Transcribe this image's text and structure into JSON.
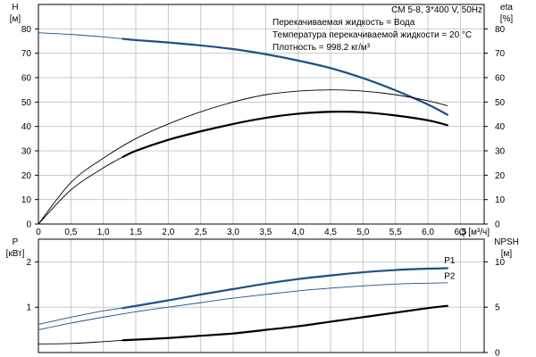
{
  "chart_data": [
    {
      "type": "line",
      "panel": "head-efficiency",
      "title": "CM 5-8, 3*400 V, 50Hz",
      "info": [
        "Перекачиваемая жидкость = Вода",
        "Температура перекачиваемой жидкости = 20 °C",
        "Плотность = 998.2 кг/м³"
      ],
      "xlabel": "Q [м³/ч]",
      "xlim": [
        0,
        7.0
      ],
      "xticks": [
        0,
        0.5,
        1.0,
        1.5,
        2.0,
        2.5,
        3.0,
        3.5,
        4.0,
        4.5,
        5.0,
        5.5,
        6.0,
        6.5
      ],
      "xtick_labels": [
        "0",
        "0,5",
        "1,0",
        "1,5",
        "2,0",
        "2,5",
        "3,0",
        "3,5",
        "4,0",
        "4,5",
        "5,0",
        "5,5",
        "6,0",
        "6,5"
      ],
      "y_left": {
        "label_lines": [
          "H",
          "[м]"
        ],
        "lim": [
          0,
          90
        ],
        "ticks": [
          0,
          10,
          20,
          30,
          40,
          50,
          60,
          70,
          80
        ]
      },
      "y_right": {
        "label_lines": [
          "eta",
          "[%]"
        ],
        "lim": [
          0,
          90
        ],
        "ticks": [
          0,
          10,
          20,
          30,
          40,
          50,
          60,
          70,
          80
        ]
      },
      "grid": true,
      "series": [
        {
          "axis": "left",
          "color": "#1c4f8a",
          "width": 0.9,
          "x": [
            0,
            0.5,
            1.0,
            1.3
          ],
          "y": [
            78.4,
            77.7,
            76.7,
            75.9
          ]
        },
        {
          "axis": "left",
          "color": "#1c4f8a",
          "width": 2.2,
          "x": [
            1.3,
            1.5,
            2.0,
            2.5,
            3.0,
            3.5,
            4.0,
            4.5,
            5.0,
            5.5,
            6.0,
            6.3
          ],
          "y": [
            75.9,
            75.4,
            74.4,
            73.2,
            71.7,
            69.6,
            67.0,
            63.9,
            59.8,
            54.8,
            49.0,
            44.8
          ]
        },
        {
          "axis": "right",
          "color": "#000000",
          "width": 0.9,
          "x": [
            0,
            0.5,
            1.0,
            1.5,
            2.0,
            2.5,
            3.0,
            3.5,
            4.0,
            4.5,
            5.0,
            5.5,
            6.0,
            6.3
          ],
          "y": [
            0,
            17,
            27,
            35,
            41,
            46,
            50,
            53,
            54.5,
            55,
            54.5,
            53,
            50.5,
            48.5
          ]
        },
        {
          "axis": "right",
          "color": "#000000",
          "width": 0.9,
          "x": [
            0,
            0.5,
            1.0,
            1.3
          ],
          "y": [
            0,
            14,
            23,
            27.5
          ]
        },
        {
          "axis": "right",
          "color": "#000000",
          "width": 2.2,
          "x": [
            1.3,
            1.5,
            2.0,
            2.5,
            3.0,
            3.5,
            4.0,
            4.5,
            5.0,
            5.5,
            6.0,
            6.3
          ],
          "y": [
            27.5,
            30,
            34.5,
            38,
            41,
            43.5,
            45.2,
            46,
            45.8,
            44.5,
            42.5,
            40.5
          ]
        }
      ]
    },
    {
      "type": "line",
      "panel": "power-npsh",
      "xlim": [
        0,
        7.0
      ],
      "y_left": {
        "label_lines": [
          "P",
          "[кВт]"
        ],
        "lim": [
          0,
          2.5
        ],
        "ticks": [
          1,
          2
        ]
      },
      "y_right": {
        "label_lines": [
          "NPSH",
          "[м]"
        ],
        "lim": [
          0,
          12.5
        ],
        "ticks": [
          0,
          5,
          10
        ]
      },
      "grid": true,
      "series": [
        {
          "name": "P1",
          "axis": "left",
          "color": "#1c4f8a",
          "width": 0.9,
          "x": [
            0,
            0.5,
            1.0,
            1.3
          ],
          "y": [
            0.62,
            0.78,
            0.92,
            0.98
          ]
        },
        {
          "name": "P1",
          "axis": "left",
          "color": "#1c4f8a",
          "width": 2.2,
          "x": [
            1.3,
            2.0,
            2.5,
            3.0,
            3.5,
            4.0,
            4.5,
            5.0,
            5.5,
            6.0,
            6.3
          ],
          "y": [
            0.98,
            1.15,
            1.28,
            1.4,
            1.52,
            1.62,
            1.7,
            1.77,
            1.82,
            1.85,
            1.86
          ]
        },
        {
          "name": "P2",
          "axis": "left",
          "color": "#1c4f8a",
          "width": 0.9,
          "x": [
            0,
            0.5,
            1.0,
            1.5,
            2.0,
            2.5,
            3.0,
            3.5,
            4.0,
            4.5,
            5.0,
            5.5,
            6.0,
            6.3
          ],
          "y": [
            0.5,
            0.65,
            0.78,
            0.9,
            1.0,
            1.1,
            1.2,
            1.28,
            1.36,
            1.42,
            1.47,
            1.51,
            1.53,
            1.54
          ]
        },
        {
          "name": "NPSH",
          "axis": "right",
          "color": "#000000",
          "width": 0.9,
          "x": [
            0,
            0.5,
            1.0,
            1.3
          ],
          "y": [
            0.95,
            1.0,
            1.2,
            1.35
          ]
        },
        {
          "name": "NPSH",
          "axis": "right",
          "color": "#000000",
          "width": 2.2,
          "x": [
            1.3,
            2.0,
            2.5,
            3.0,
            3.5,
            4.0,
            4.5,
            5.0,
            5.5,
            6.0,
            6.3
          ],
          "y": [
            1.35,
            1.6,
            1.85,
            2.1,
            2.5,
            2.9,
            3.4,
            3.9,
            4.4,
            4.9,
            5.15
          ]
        }
      ],
      "series_labels": [
        {
          "text": "P1",
          "x": 6.25,
          "y": 1.97
        },
        {
          "text": "P2",
          "x": 6.25,
          "y": 1.62
        }
      ]
    }
  ]
}
